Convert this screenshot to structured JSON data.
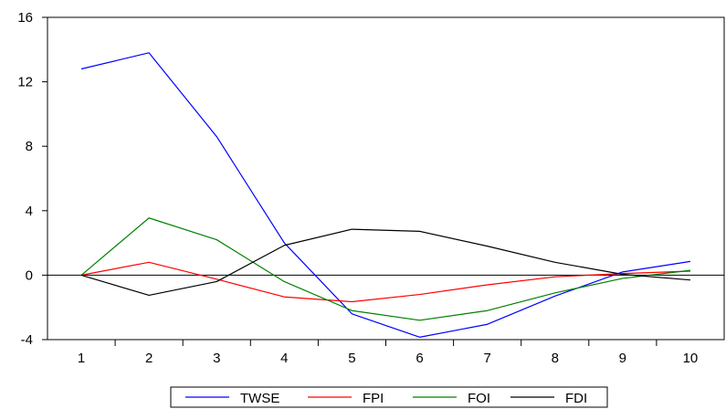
{
  "chart_data": {
    "type": "line",
    "title": "",
    "xlabel": "",
    "ylabel": "",
    "x": [
      1,
      2,
      3,
      4,
      5,
      6,
      7,
      8,
      9,
      10
    ],
    "ylim": [
      -4,
      16
    ],
    "yticks": [
      -4,
      0,
      4,
      8,
      12,
      16
    ],
    "grid": false,
    "zero_line": true,
    "legend_position": "bottom-center",
    "series": [
      {
        "name": "TWSE",
        "color": "#0000ff",
        "values": [
          12.8,
          13.8,
          8.6,
          2.0,
          -2.4,
          -3.85,
          -3.05,
          -1.3,
          0.2,
          0.85
        ]
      },
      {
        "name": "FPI",
        "color": "#ff0000",
        "values": [
          0.0,
          0.8,
          -0.25,
          -1.35,
          -1.65,
          -1.2,
          -0.6,
          -0.1,
          0.1,
          0.25
        ]
      },
      {
        "name": "FOI",
        "color": "#008000",
        "values": [
          0.0,
          3.55,
          2.2,
          -0.4,
          -2.2,
          -2.8,
          -2.2,
          -1.1,
          -0.2,
          0.3
        ]
      },
      {
        "name": "FDI",
        "color": "#000000",
        "values": [
          0.0,
          -1.25,
          -0.4,
          1.85,
          2.85,
          2.72,
          1.8,
          0.8,
          0.05,
          -0.3
        ]
      }
    ]
  }
}
